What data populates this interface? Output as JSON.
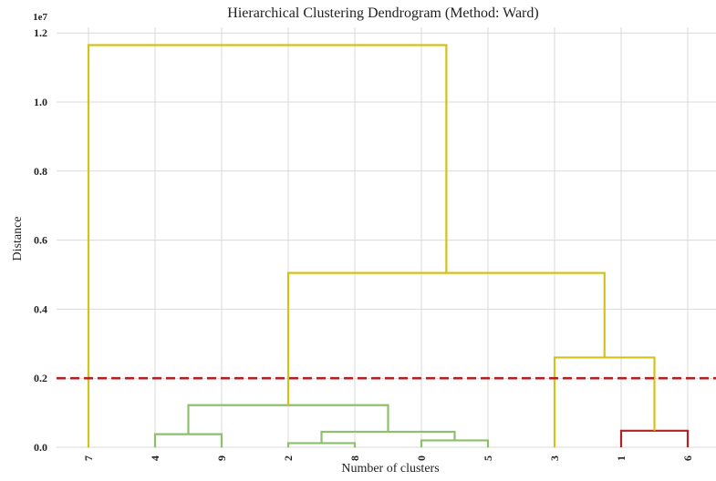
{
  "chart_data": {
    "type": "dendrogram",
    "title": "Hierarchical Clustering Dendrogram (Method: Ward)",
    "xlabel": "Number of clusters",
    "ylabel": "Distance",
    "y_scale_label": "1e7",
    "ylim": [
      0,
      12200000
    ],
    "yticks": [
      0,
      2000000,
      4000000,
      6000000,
      8000000,
      10000000,
      12000000
    ],
    "ytick_labels": [
      "0.0",
      "0.2",
      "0.4",
      "0.6",
      "0.8",
      "1.0",
      "1.2"
    ],
    "grid": true,
    "leaves": [
      "7",
      "4",
      "9",
      "2",
      "8",
      "0",
      "5",
      "3",
      "1",
      "6"
    ],
    "threshold": {
      "value": 2000000,
      "color": "#b22222",
      "style": "dashed"
    },
    "links": [
      {
        "left": "2",
        "right": "8",
        "height": 120000,
        "color": "#8cc06a"
      },
      {
        "left": "0",
        "right": "5",
        "height": 200000,
        "color": "#8cc06a"
      },
      {
        "left": "4",
        "right": "9",
        "height": 380000,
        "color": "#8cc06a"
      },
      {
        "left": "2,8",
        "right": "0,5",
        "height": 450000,
        "color": "#8cc06a"
      },
      {
        "left": "1",
        "right": "6",
        "height": 480000,
        "color": "#b22222"
      },
      {
        "left": "4,9",
        "right": "2,8,0,5",
        "height": 1220000,
        "color": "#8cc06a"
      },
      {
        "left": "3",
        "right": "1,6",
        "height": 2600000,
        "color": "#d4c21a"
      },
      {
        "left": "4,9,2,8,0,5",
        "right": "3,1,6",
        "height": 5050000,
        "color": "#d4c21a"
      },
      {
        "left": "7",
        "right": "4,9,2,8,0,5,3,1,6",
        "height": 11650000,
        "color": "#d4c21a"
      }
    ],
    "leaf_colors": {
      "7": "#d4c21a",
      "4": "#8cc06a",
      "9": "#8cc06a",
      "2": "#8cc06a",
      "8": "#8cc06a",
      "0": "#8cc06a",
      "5": "#8cc06a",
      "3": "#d4c21a",
      "1": "#b22222",
      "6": "#b22222"
    }
  }
}
